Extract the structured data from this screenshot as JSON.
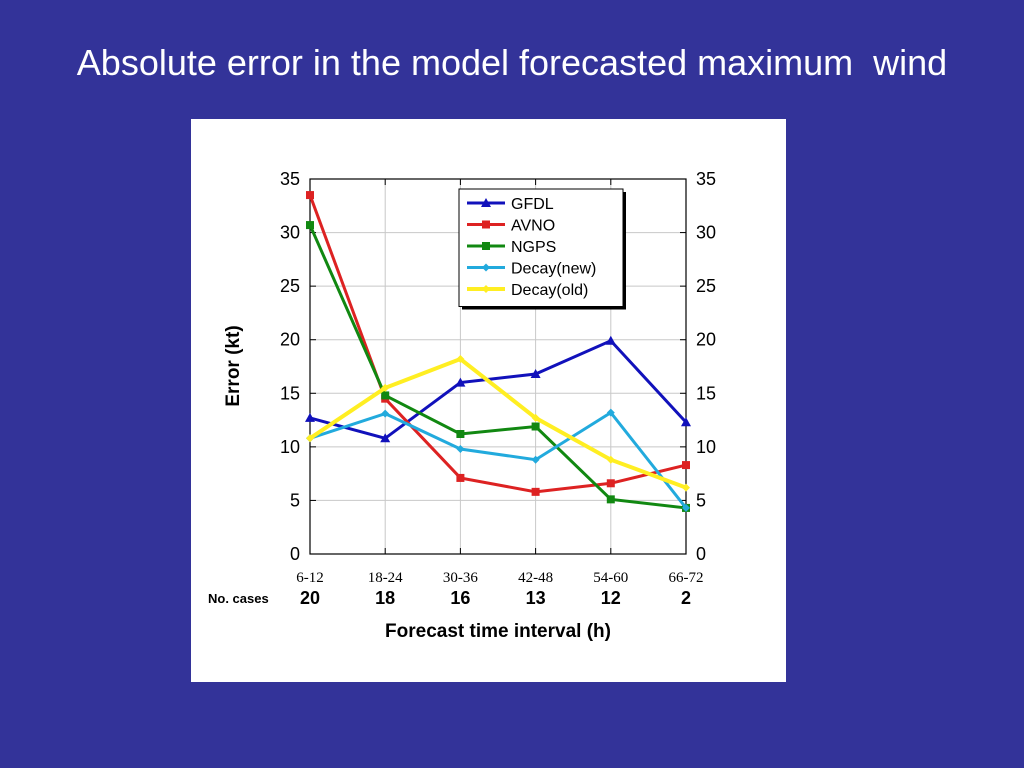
{
  "slide": {
    "title": "Absolute error in the model forecasted maximum  wind"
  },
  "chart_data": {
    "type": "line",
    "categories": [
      "6-12",
      "18-24",
      "30-36",
      "42-48",
      "54-60",
      "66-72"
    ],
    "ylabel": "Error (kt)",
    "xlabel": "Forecast time interval (h)",
    "ylim": [
      0,
      35
    ],
    "yticks": [
      0,
      5,
      10,
      15,
      20,
      25,
      30,
      35
    ],
    "grid": true,
    "legend_position": "top-right",
    "no_cases_label": "No. cases",
    "no_cases": [
      "20",
      "18",
      "16",
      "13",
      "12",
      "2"
    ],
    "series": [
      {
        "name": "GFDL",
        "color": "#1111bb",
        "marker": "triangle",
        "values": [
          12.7,
          10.8,
          16.0,
          16.8,
          19.9,
          12.3
        ]
      },
      {
        "name": "AVNO",
        "color": "#dd2222",
        "marker": "square",
        "values": [
          33.5,
          14.5,
          7.1,
          5.8,
          6.6,
          8.3
        ]
      },
      {
        "name": "NGPS",
        "color": "#118811",
        "marker": "square",
        "values": [
          30.7,
          14.8,
          11.2,
          11.9,
          5.1,
          4.3
        ]
      },
      {
        "name": "Decay(new)",
        "color": "#22aadd",
        "marker": "diamond",
        "values": [
          10.8,
          13.1,
          9.8,
          8.8,
          13.2,
          4.3
        ]
      },
      {
        "name": "Decay(old)",
        "color": "#ffee22",
        "marker": "diamond",
        "values": [
          10.8,
          15.5,
          18.2,
          12.7,
          8.8,
          6.2
        ]
      }
    ]
  }
}
